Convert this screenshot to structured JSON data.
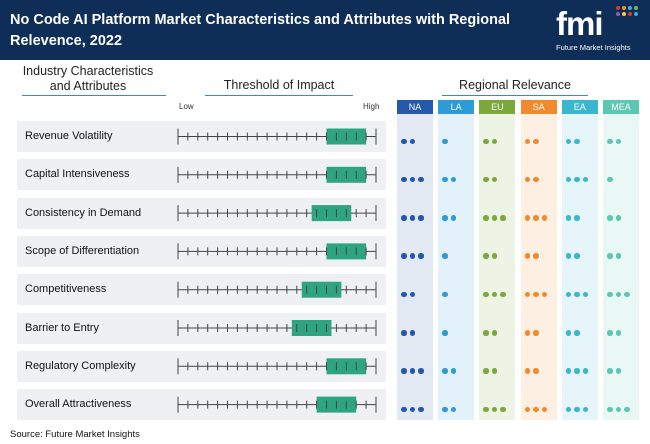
{
  "header": {
    "title": "No Code AI Platform Market Characteristics and Attributes with Regional Relevence, 2022",
    "logo_text": "fmi",
    "logo_subtitle": "Future Market Insights"
  },
  "columns": {
    "characteristics": "Industry Characteristics and Attributes",
    "threshold": "Threshold of Impact",
    "regional": "Regional Relevance"
  },
  "scale": {
    "low": "Low",
    "high": "High"
  },
  "source": "Source: Future Market Insights",
  "colors": {
    "header": "#0e2d57",
    "marker": "#2ea57e",
    "row_bg": "#eef0f2"
  },
  "chart_data": {
    "type": "table",
    "impact_scale": [
      0,
      20
    ],
    "regions": [
      {
        "code": "NA",
        "color": "#2458a8"
      },
      {
        "code": "LA",
        "color": "#2e9bd6"
      },
      {
        "code": "EU",
        "color": "#7ba83a"
      },
      {
        "code": "SA",
        "color": "#ef8b2c"
      },
      {
        "code": "EA",
        "color": "#3bb6cf"
      },
      {
        "code": "MEA",
        "color": "#5cc7b3"
      }
    ],
    "rows": [
      {
        "label": "Revenue Volatility",
        "impact": [
          15,
          19
        ],
        "regional": [
          2,
          1,
          2,
          2,
          2,
          2
        ]
      },
      {
        "label": "Capital Intensiveness",
        "impact": [
          15,
          19
        ],
        "regional": [
          3,
          2,
          2,
          2,
          3,
          1
        ]
      },
      {
        "label": "Consistency in Demand",
        "impact": [
          13.5,
          17.5
        ],
        "regional": [
          3,
          2,
          3,
          3,
          2,
          2
        ]
      },
      {
        "label": "Scope of Differentiation",
        "impact": [
          15,
          19
        ],
        "regional": [
          3,
          1,
          2,
          2,
          2,
          2
        ]
      },
      {
        "label": "Competitiveness",
        "impact": [
          12.5,
          16.5
        ],
        "regional": [
          2,
          1,
          3,
          3,
          3,
          3
        ]
      },
      {
        "label": "Barrier to Entry",
        "impact": [
          11.5,
          15.5
        ],
        "regional": [
          2,
          1,
          2,
          2,
          2,
          2
        ]
      },
      {
        "label": "Regulatory Complexity",
        "impact": [
          15,
          19
        ],
        "regional": [
          3,
          2,
          2,
          2,
          3,
          2
        ]
      },
      {
        "label": "Overall Attractiveness",
        "impact": [
          14,
          18
        ],
        "regional": [
          3,
          2,
          3,
          3,
          3,
          3
        ]
      }
    ]
  }
}
